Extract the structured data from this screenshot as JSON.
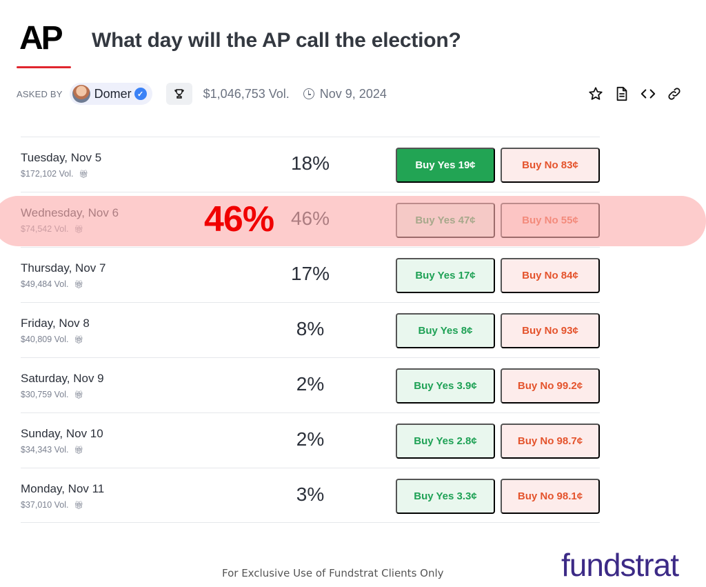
{
  "header": {
    "logo_text": "AP",
    "title": "What day will the AP call the election?"
  },
  "meta": {
    "asked_by_label": "ASKED BY",
    "user_name": "Domer",
    "volume": "$1,046,753 Vol.",
    "date": "Nov 9, 2024"
  },
  "actions": [
    "star-icon",
    "document-icon",
    "code-icon",
    "link-icon"
  ],
  "rows": [
    {
      "label": "Tuesday, Nov 5",
      "volume": "$172,102 Vol.",
      "pct": "18%",
      "yes": "Buy Yes 19¢",
      "no": "Buy No 83¢"
    },
    {
      "label": "Wednesday, Nov 6",
      "volume": "$74,542 Vol.",
      "pct": "46%",
      "yes": "Buy Yes 47¢",
      "no": "Buy No 55¢"
    },
    {
      "label": "Thursday, Nov 7",
      "volume": "$49,484 Vol.",
      "pct": "17%",
      "yes": "Buy Yes 17¢",
      "no": "Buy No 84¢"
    },
    {
      "label": "Friday, Nov 8",
      "volume": "$40,809 Vol.",
      "pct": "8%",
      "yes": "Buy Yes 8¢",
      "no": "Buy No 93¢"
    },
    {
      "label": "Saturday, Nov 9",
      "volume": "$30,759 Vol.",
      "pct": "2%",
      "yes": "Buy Yes 3.9¢",
      "no": "Buy No 99.2¢"
    },
    {
      "label": "Sunday, Nov 10",
      "volume": "$34,343 Vol.",
      "pct": "2%",
      "yes": "Buy Yes 2.8¢",
      "no": "Buy No 98.7¢"
    },
    {
      "label": "Monday, Nov 11",
      "volume": "$37,010 Vol.",
      "pct": "3%",
      "yes": "Buy Yes 3.3¢",
      "no": "Buy No 98.1¢"
    }
  ],
  "annotation": {
    "highlight_pct": "46%"
  },
  "footer": {
    "disclaimer": "For Exclusive Use of Fundstrat Clients Only",
    "brand": "fundstrat"
  },
  "colors": {
    "yes_active_bg": "#22a454",
    "yes_text": "#1ea155",
    "no_text": "#e4532c",
    "highlight": "#fbacac",
    "annotation_red": "#f00000",
    "brand_purple": "#3c2a86",
    "logo_underline": "#e0262e"
  }
}
